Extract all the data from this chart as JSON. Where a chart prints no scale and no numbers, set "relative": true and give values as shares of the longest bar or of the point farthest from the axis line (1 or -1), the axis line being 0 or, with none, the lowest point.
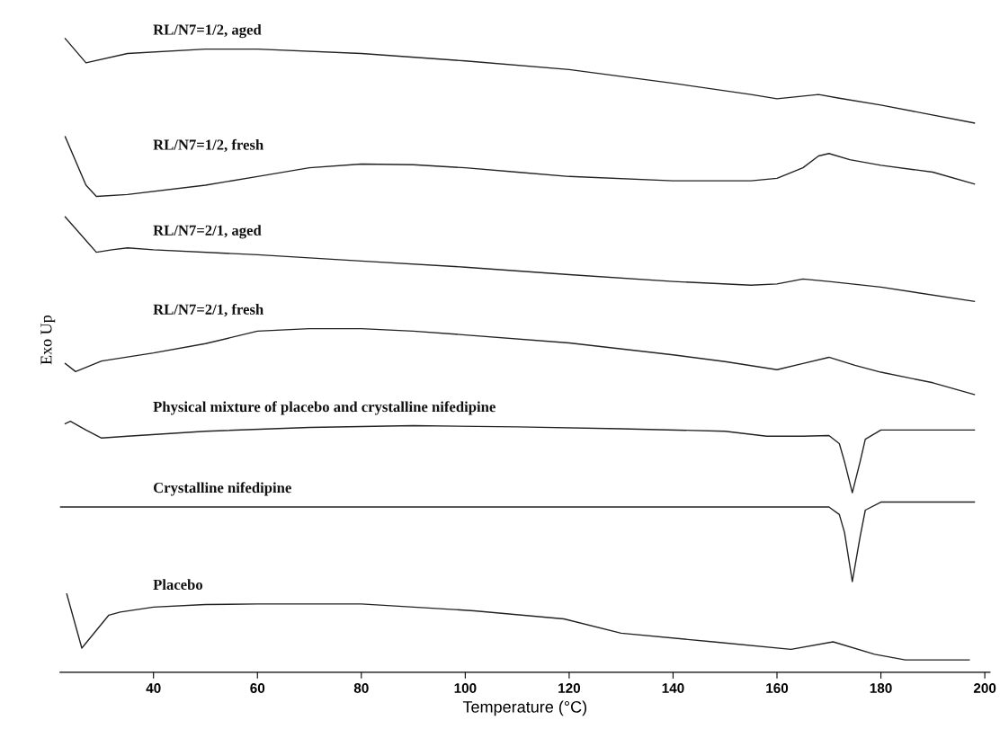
{
  "chart_data": {
    "type": "line",
    "relative": true,
    "xlabel": "Temperature (°C)",
    "ylabel": "Exo Up",
    "legend": false,
    "grid": false,
    "marker": "none",
    "line_style": "solid",
    "xlim": [
      22,
      201
    ],
    "xticks": [
      40,
      60,
      80,
      100,
      120,
      140,
      160,
      180,
      200
    ],
    "series": [
      {
        "name": "RL/N7=1/2, aged",
        "color": "#222222",
        "x": [
          23,
          27,
          35,
          50,
          60,
          80,
          100,
          120,
          140,
          155,
          160,
          168,
          172,
          180,
          198
        ],
        "values": [
          1.0,
          0.961,
          0.976,
          0.983,
          0.983,
          0.976,
          0.964,
          0.95,
          0.928,
          0.91,
          0.903,
          0.91,
          0.904,
          0.893,
          0.864
        ]
      },
      {
        "name": "RL/N7=1/2, fresh",
        "color": "#222222",
        "x": [
          23,
          27,
          29,
          35,
          50,
          60,
          70,
          80,
          90,
          100,
          110,
          120,
          140,
          155,
          160,
          165,
          168,
          170,
          174,
          180,
          190,
          198
        ],
        "values": [
          0.842,
          0.764,
          0.746,
          0.749,
          0.764,
          0.778,
          0.792,
          0.798,
          0.797,
          0.792,
          0.785,
          0.778,
          0.771,
          0.771,
          0.775,
          0.792,
          0.811,
          0.815,
          0.805,
          0.796,
          0.785,
          0.766
        ]
      },
      {
        "name": "RL/N7=2/1, aged",
        "color": "#222222",
        "x": [
          23,
          27,
          29,
          32,
          35,
          40,
          60,
          80,
          100,
          120,
          140,
          155,
          160,
          165,
          170,
          180,
          198
        ],
        "values": [
          0.713,
          0.675,
          0.656,
          0.66,
          0.663,
          0.66,
          0.652,
          0.642,
          0.632,
          0.62,
          0.609,
          0.603,
          0.605,
          0.613,
          0.609,
          0.6,
          0.577
        ]
      },
      {
        "name": "RL/N7=2/1, fresh",
        "color": "#222222",
        "x": [
          23,
          25,
          30,
          40,
          50,
          60,
          70,
          80,
          90,
          100,
          120,
          140,
          150,
          160,
          165,
          170,
          175,
          180,
          190,
          198
        ],
        "values": [
          0.477,
          0.464,
          0.481,
          0.494,
          0.509,
          0.529,
          0.533,
          0.533,
          0.529,
          0.523,
          0.51,
          0.491,
          0.48,
          0.467,
          0.477,
          0.487,
          0.474,
          0.463,
          0.446,
          0.427
        ]
      },
      {
        "name": "Physical mixture of placebo and crystalline nifedipine",
        "color": "#222222",
        "x": [
          23,
          24,
          27,
          30,
          35,
          50,
          70,
          90,
          110,
          130,
          150,
          158,
          165,
          170,
          172,
          173,
          174.5,
          176,
          177,
          180,
          198
        ],
        "values": [
          0.38,
          0.384,
          0.37,
          0.357,
          0.36,
          0.368,
          0.374,
          0.377,
          0.375,
          0.372,
          0.368,
          0.36,
          0.36,
          0.361,
          0.348,
          0.319,
          0.269,
          0.319,
          0.355,
          0.37,
          0.37
        ]
      },
      {
        "name": "Crystalline nifedipine",
        "color": "#222222",
        "x": [
          22,
          170,
          172,
          173,
          174.5,
          176,
          177,
          180,
          198
        ],
        "values": [
          0.246,
          0.246,
          0.234,
          0.205,
          0.126,
          0.198,
          0.241,
          0.254,
          0.254
        ]
      },
      {
        "name": "Placebo",
        "color": "#222222",
        "x": [
          23.3,
          26.2,
          31.4,
          33.6,
          40,
          50,
          60,
          80,
          101.7,
          119,
          130,
          147.7,
          162.7,
          170.8,
          178.8,
          184.7,
          197
        ],
        "values": [
          0.106,
          0.019,
          0.072,
          0.077,
          0.085,
          0.089,
          0.09,
          0.09,
          0.079,
          0.066,
          0.043,
          0.029,
          0.017,
          0.029,
          0.009,
          0.0,
          0.0
        ]
      }
    ]
  }
}
